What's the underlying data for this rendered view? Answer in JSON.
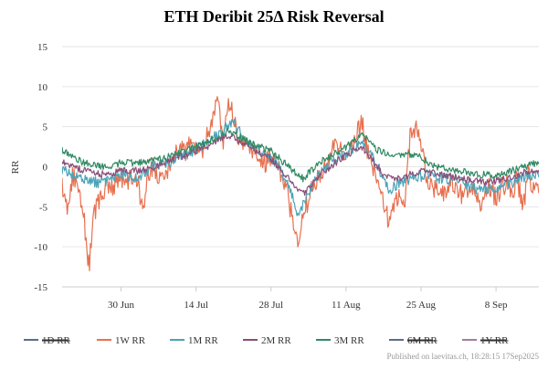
{
  "publisher": "Published on laevitas.ch, 18:28:15 17Sep2025",
  "chart_data": {
    "type": "line",
    "title": "ETH Deribit 25Δ Risk Reversal",
    "xlabel": "",
    "ylabel": "RR",
    "x_range": [
      "2025-06-19",
      "2025-09-16"
    ],
    "x_ticks": [
      {
        "date": "2025-06-30",
        "label": "30 Jun"
      },
      {
        "date": "2025-07-14",
        "label": "14 Jul"
      },
      {
        "date": "2025-07-28",
        "label": "28 Jul"
      },
      {
        "date": "2025-08-11",
        "label": "11 Aug"
      },
      {
        "date": "2025-08-25",
        "label": "25 Aug"
      },
      {
        "date": "2025-09-08",
        "label": "8 Sep"
      }
    ],
    "ylim": [
      -15,
      15
    ],
    "y_ticks": [
      15,
      10,
      5,
      0,
      -5,
      -10,
      -15
    ],
    "grid": "horizontal",
    "legend_position": "bottom",
    "series": [
      {
        "name": "1D RR",
        "color": "#5b6b8a",
        "hidden": true,
        "points": []
      },
      {
        "name": "1W RR",
        "color": "#e8704f",
        "hidden": false,
        "points": [
          [
            "2025-06-19",
            -2.0
          ],
          [
            "2025-06-20",
            -5.0
          ],
          [
            "2025-06-21",
            -1.0
          ],
          [
            "2025-06-22",
            -3.0
          ],
          [
            "2025-06-23",
            -6.0
          ],
          [
            "2025-06-24",
            -12.5
          ],
          [
            "2025-06-25",
            -6.0
          ],
          [
            "2025-06-26",
            -4.0
          ],
          [
            "2025-06-27",
            -2.5
          ],
          [
            "2025-06-28",
            -3.0
          ],
          [
            "2025-06-29",
            -2.0
          ],
          [
            "2025-06-30",
            -1.5
          ],
          [
            "2025-07-01",
            -2.5
          ],
          [
            "2025-07-02",
            -1.0
          ],
          [
            "2025-07-03",
            -1.5
          ],
          [
            "2025-07-04",
            -5.5
          ],
          [
            "2025-07-05",
            -1.0
          ],
          [
            "2025-07-06",
            0.0
          ],
          [
            "2025-07-07",
            -1.0
          ],
          [
            "2025-07-08",
            -2.0
          ],
          [
            "2025-07-09",
            0.0
          ],
          [
            "2025-07-10",
            1.0
          ],
          [
            "2025-07-11",
            2.5
          ],
          [
            "2025-07-12",
            1.5
          ],
          [
            "2025-07-13",
            3.5
          ],
          [
            "2025-07-14",
            2.0
          ],
          [
            "2025-07-15",
            1.5
          ],
          [
            "2025-07-16",
            4.0
          ],
          [
            "2025-07-17",
            5.5
          ],
          [
            "2025-07-18",
            9.5
          ],
          [
            "2025-07-19",
            3.0
          ],
          [
            "2025-07-20",
            8.0
          ],
          [
            "2025-07-21",
            6.5
          ],
          [
            "2025-07-22",
            3.0
          ],
          [
            "2025-07-23",
            3.5
          ],
          [
            "2025-07-24",
            2.5
          ],
          [
            "2025-07-25",
            2.0
          ],
          [
            "2025-07-26",
            1.0
          ],
          [
            "2025-07-27",
            0.5
          ],
          [
            "2025-07-28",
            1.5
          ],
          [
            "2025-07-29",
            0.0
          ],
          [
            "2025-07-30",
            -1.0
          ],
          [
            "2025-07-31",
            -2.5
          ],
          [
            "2025-08-01",
            -7.0
          ],
          [
            "2025-08-02",
            -9.0
          ],
          [
            "2025-08-03",
            -6.0
          ],
          [
            "2025-08-04",
            -4.0
          ],
          [
            "2025-08-05",
            -2.0
          ],
          [
            "2025-08-06",
            -1.5
          ],
          [
            "2025-08-07",
            0.5
          ],
          [
            "2025-08-08",
            1.5
          ],
          [
            "2025-08-09",
            2.5
          ],
          [
            "2025-08-10",
            2.0
          ],
          [
            "2025-08-11",
            1.0
          ],
          [
            "2025-08-12",
            2.5
          ],
          [
            "2025-08-13",
            4.0
          ],
          [
            "2025-08-14",
            5.5
          ],
          [
            "2025-08-15",
            2.0
          ],
          [
            "2025-08-16",
            0.0
          ],
          [
            "2025-08-17",
            -2.0
          ],
          [
            "2025-08-18",
            -4.0
          ],
          [
            "2025-08-19",
            -7.0
          ],
          [
            "2025-08-20",
            -5.0
          ],
          [
            "2025-08-21",
            -3.0
          ],
          [
            "2025-08-22",
            -4.0
          ],
          [
            "2025-08-23",
            4.0
          ],
          [
            "2025-08-24",
            5.0
          ],
          [
            "2025-08-25",
            3.0
          ],
          [
            "2025-08-26",
            -1.0
          ],
          [
            "2025-08-27",
            -3.0
          ],
          [
            "2025-08-28",
            -2.0
          ],
          [
            "2025-08-29",
            -3.5
          ],
          [
            "2025-08-30",
            -2.5
          ],
          [
            "2025-08-31",
            -2.0
          ],
          [
            "2025-09-01",
            -3.0
          ],
          [
            "2025-09-02",
            -4.0
          ],
          [
            "2025-09-03",
            -2.0
          ],
          [
            "2025-09-04",
            -3.0
          ],
          [
            "2025-09-05",
            -5.0
          ],
          [
            "2025-09-06",
            -3.0
          ],
          [
            "2025-09-07",
            -2.5
          ],
          [
            "2025-09-08",
            -4.0
          ],
          [
            "2025-09-09",
            -2.5
          ],
          [
            "2025-09-10",
            -2.0
          ],
          [
            "2025-09-11",
            -3.0
          ],
          [
            "2025-09-12",
            -1.5
          ],
          [
            "2025-09-13",
            -5.5
          ],
          [
            "2025-09-14",
            -1.0
          ],
          [
            "2025-09-15",
            -3.0
          ],
          [
            "2025-09-16",
            -2.0
          ]
        ]
      },
      {
        "name": "1M RR",
        "color": "#4aa3b8",
        "hidden": false,
        "points": [
          [
            "2025-06-19",
            -0.5
          ],
          [
            "2025-06-23",
            -1.5
          ],
          [
            "2025-06-26",
            -2.0
          ],
          [
            "2025-06-30",
            -1.0
          ],
          [
            "2025-07-03",
            -1.5
          ],
          [
            "2025-07-06",
            0.0
          ],
          [
            "2025-07-09",
            0.5
          ],
          [
            "2025-07-12",
            1.5
          ],
          [
            "2025-07-15",
            2.5
          ],
          [
            "2025-07-18",
            4.0
          ],
          [
            "2025-07-21",
            5.5
          ],
          [
            "2025-07-23",
            3.5
          ],
          [
            "2025-07-26",
            2.0
          ],
          [
            "2025-07-29",
            0.5
          ],
          [
            "2025-08-01",
            -3.5
          ],
          [
            "2025-08-02",
            -6.0
          ],
          [
            "2025-08-05",
            -2.0
          ],
          [
            "2025-08-08",
            0.5
          ],
          [
            "2025-08-11",
            1.5
          ],
          [
            "2025-08-14",
            3.0
          ],
          [
            "2025-08-17",
            0.0
          ],
          [
            "2025-08-19",
            -3.0
          ],
          [
            "2025-08-21",
            -2.0
          ],
          [
            "2025-08-23",
            -1.5
          ],
          [
            "2025-08-26",
            -1.0
          ],
          [
            "2025-08-29",
            -1.5
          ],
          [
            "2025-09-02",
            -2.0
          ],
          [
            "2025-09-05",
            -3.0
          ],
          [
            "2025-09-08",
            -2.5
          ],
          [
            "2025-09-11",
            -2.0
          ],
          [
            "2025-09-14",
            -1.0
          ],
          [
            "2025-09-16",
            -1.0
          ]
        ]
      },
      {
        "name": "2M RR",
        "color": "#8a4e78",
        "hidden": false,
        "points": [
          [
            "2025-06-19",
            0.5
          ],
          [
            "2025-06-23",
            -0.5
          ],
          [
            "2025-06-27",
            -1.0
          ],
          [
            "2025-06-30",
            -0.5
          ],
          [
            "2025-07-04",
            -0.5
          ],
          [
            "2025-07-08",
            0.5
          ],
          [
            "2025-07-12",
            1.5
          ],
          [
            "2025-07-16",
            2.5
          ],
          [
            "2025-07-20",
            4.0
          ],
          [
            "2025-07-24",
            2.5
          ],
          [
            "2025-07-28",
            1.0
          ],
          [
            "2025-08-01",
            -2.0
          ],
          [
            "2025-08-03",
            -3.5
          ],
          [
            "2025-08-06",
            -1.0
          ],
          [
            "2025-08-10",
            1.0
          ],
          [
            "2025-08-14",
            2.5
          ],
          [
            "2025-08-18",
            -1.0
          ],
          [
            "2025-08-21",
            -1.5
          ],
          [
            "2025-08-25",
            -0.5
          ],
          [
            "2025-08-29",
            -1.0
          ],
          [
            "2025-09-02",
            -1.5
          ],
          [
            "2025-09-06",
            -2.0
          ],
          [
            "2025-09-10",
            -1.5
          ],
          [
            "2025-09-14",
            -0.5
          ],
          [
            "2025-09-16",
            -0.5
          ]
        ]
      },
      {
        "name": "3M RR",
        "color": "#2e8a63",
        "hidden": false,
        "points": [
          [
            "2025-06-19",
            2.0
          ],
          [
            "2025-06-23",
            0.5
          ],
          [
            "2025-06-27",
            0.0
          ],
          [
            "2025-06-30",
            0.5
          ],
          [
            "2025-07-04",
            0.5
          ],
          [
            "2025-07-08",
            1.0
          ],
          [
            "2025-07-12",
            2.0
          ],
          [
            "2025-07-16",
            3.0
          ],
          [
            "2025-07-20",
            4.5
          ],
          [
            "2025-07-24",
            3.0
          ],
          [
            "2025-07-28",
            2.0
          ],
          [
            "2025-08-01",
            -0.5
          ],
          [
            "2025-08-03",
            -1.5
          ],
          [
            "2025-08-06",
            0.5
          ],
          [
            "2025-08-10",
            2.0
          ],
          [
            "2025-08-14",
            4.0
          ],
          [
            "2025-08-17",
            2.0
          ],
          [
            "2025-08-20",
            1.5
          ],
          [
            "2025-08-24",
            1.5
          ],
          [
            "2025-08-28",
            0.0
          ],
          [
            "2025-09-01",
            -0.5
          ],
          [
            "2025-09-05",
            -1.0
          ],
          [
            "2025-09-09",
            -1.0
          ],
          [
            "2025-09-13",
            0.0
          ],
          [
            "2025-09-16",
            0.5
          ]
        ]
      },
      {
        "name": "6M RR",
        "color": "#5b6b8a",
        "hidden": true,
        "points": []
      },
      {
        "name": "1Y RR",
        "color": "#a57ba0",
        "hidden": true,
        "points": []
      }
    ]
  }
}
